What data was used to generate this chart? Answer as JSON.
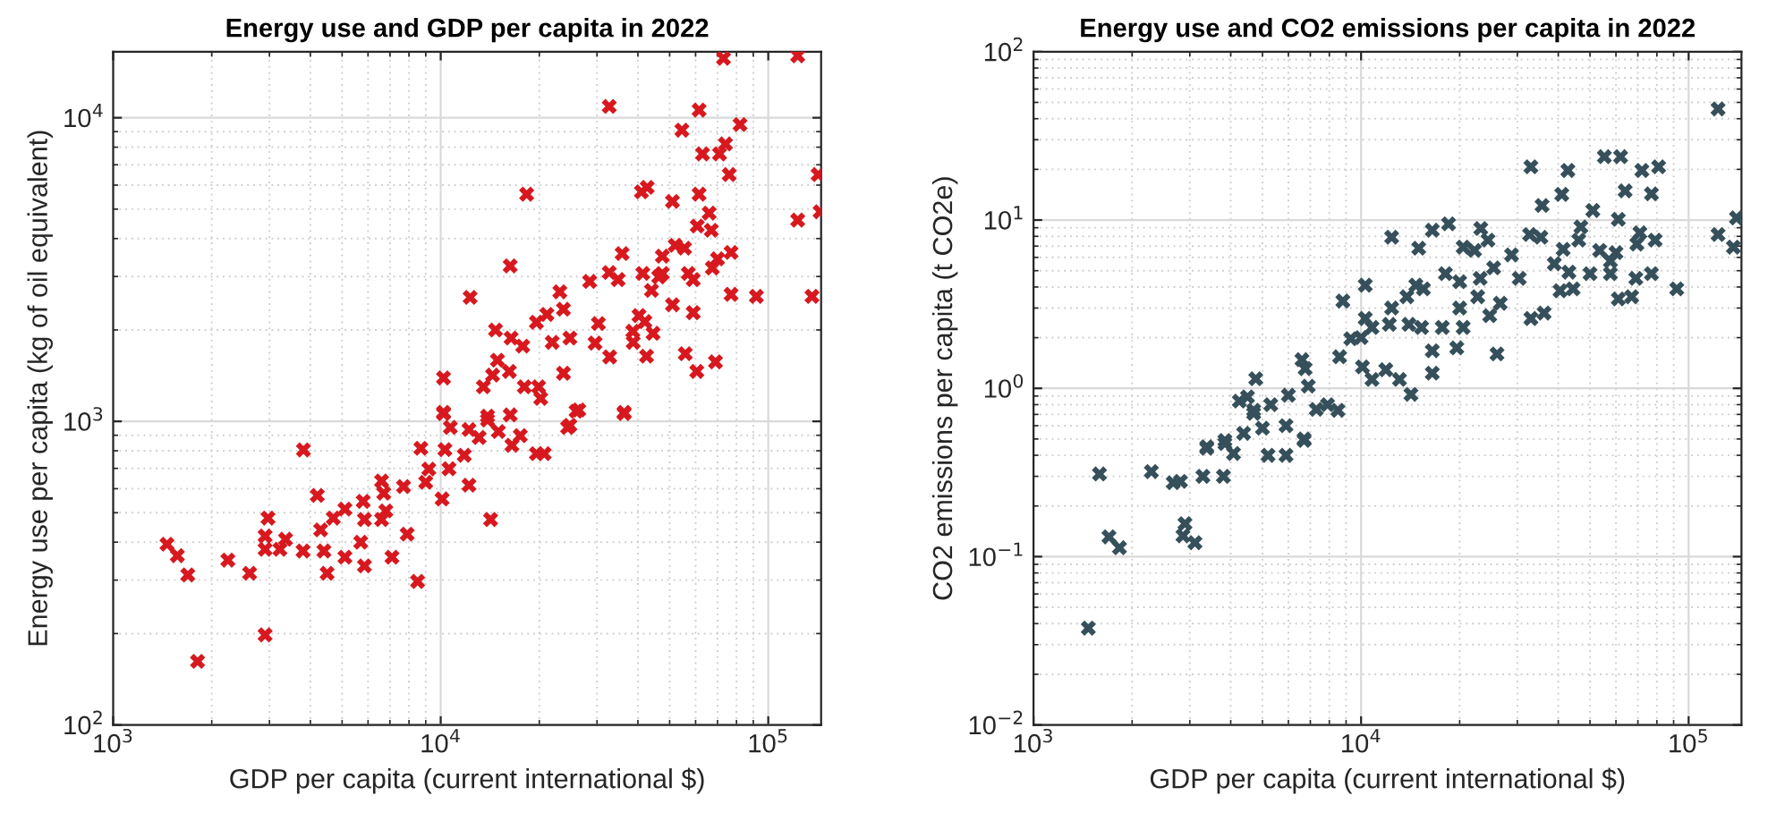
{
  "chart_data": [
    {
      "type": "scatter",
      "title": "Energy use and GDP per capita in 2022",
      "xlabel": "GDP per capita (current international $)",
      "ylabel": "Energy use per capita (kg of oil equivalent)",
      "log": "xy",
      "grid": true,
      "marker": "cross",
      "xlim": [
        1000,
        145000
      ],
      "ylim": [
        100,
        16500
      ],
      "xticks": [
        {
          "value": 1000,
          "label": "10$^{3}$"
        },
        {
          "value": 10000,
          "label": "10$^{4}$"
        },
        {
          "value": 100000,
          "label": "10$^{5}$"
        }
      ],
      "yticks": [
        {
          "value": 100,
          "label": "10$^{2}$"
        },
        {
          "value": 1000,
          "label": "10$^{3}$"
        },
        {
          "value": 10000,
          "label": "10$^{4}$"
        }
      ],
      "series": [
        {
          "color": "#d7191f",
          "x": [
            123000,
            73000,
            32700,
            61500,
            54500,
            82000,
            74000,
            63000,
            71000,
            76000,
            142000,
            144000,
            123000,
            18300,
            41000,
            42700,
            51000,
            61500,
            66000,
            60700,
            67000,
            52000,
            55500,
            47500,
            35800,
            77000,
            70000,
            67500,
            16300,
            32700,
            34800,
            41400,
            47500,
            57000,
            59000,
            28500,
            44000,
            46300,
            12300,
            23100,
            77000,
            92000,
            136000,
            51000,
            59000,
            23700,
            19600,
            21100,
            40300,
            30300,
            42000,
            14700,
            16400,
            24800,
            17800,
            21900,
            38600,
            44500,
            29600,
            38700,
            55800,
            69000,
            42500,
            32800,
            14900,
            60500,
            16200,
            14400,
            23700,
            10200,
            13500,
            18000,
            19900,
            20200,
            36300,
            26400,
            24800,
            10200,
            16300,
            13900,
            10700,
            12200,
            13900,
            13100,
            15000,
            16500,
            17500,
            19600,
            20700,
            24400,
            25900,
            36300,
            10200,
            10300,
            8700,
            11800,
            10600,
            9200,
            12200,
            7700,
            9000,
            10100,
            14200,
            6600,
            6700,
            6800,
            5800,
            5850,
            6600,
            7900,
            7100,
            8500,
            5700,
            5100,
            4700,
            4200,
            3810,
            4300,
            4400,
            3800,
            5100,
            5850,
            4500,
            3360,
            2970,
            2910,
            2910,
            3230,
            2240,
            2610,
            1460,
            1570,
            1690,
            2910,
            1810
          ],
          "values": [
            16000,
            15700,
            10900,
            10600,
            9100,
            9500,
            8200,
            7600,
            7600,
            6500,
            6500,
            4900,
            4600,
            5600,
            5700,
            5900,
            5300,
            5600,
            4850,
            4400,
            4260,
            3800,
            3720,
            3500,
            3570,
            3600,
            3430,
            3200,
            3250,
            3090,
            2930,
            3070,
            3070,
            3070,
            2930,
            2890,
            2700,
            2990,
            2560,
            2670,
            2620,
            2580,
            2580,
            2420,
            2280,
            2340,
            2120,
            2250,
            2230,
            2100,
            2130,
            2000,
            1880,
            1880,
            1770,
            1820,
            1980,
            1950,
            1810,
            1820,
            1670,
            1570,
            1640,
            1630,
            1590,
            1460,
            1460,
            1420,
            1440,
            1390,
            1300,
            1300,
            1300,
            1190,
            1070,
            1090,
            970,
            1070,
            1050,
            1040,
            955,
            940,
            1010,
            885,
            926,
            834,
            897,
            783,
            783,
            955,
            1080,
            1060,
            1060,
            807,
            815,
            773,
            698,
            696,
            616,
            610,
            630,
            555,
            475,
            636,
            580,
            507,
            545,
            475,
            475,
            425,
            357,
            297,
            400,
            514,
            480,
            570,
            805,
            439,
            374,
            374,
            357,
            334,
            316,
            409,
            480,
            419,
            379,
            379,
            349,
            316,
            394,
            361,
            312,
            198,
            162
          ]
        }
      ]
    },
    {
      "type": "scatter",
      "title": "Energy use and CO2 emissions per capita in 2022",
      "xlabel": "GDP per capita (current international $)",
      "ylabel": "CO2 emissions per capita (t CO2e)",
      "log": "xy",
      "grid": true,
      "marker": "cross",
      "xlim": [
        1000,
        145000
      ],
      "ylim": [
        0.01,
        100
      ],
      "xticks": [
        {
          "value": 1000,
          "label": "10$^{3}$"
        },
        {
          "value": 10000,
          "label": "10$^{4}$"
        },
        {
          "value": 100000,
          "label": "10$^{5}$"
        }
      ],
      "yticks": [
        {
          "value": 0.01,
          "label": "10$^{−2}$"
        },
        {
          "value": 0.1,
          "label": "10$^{−1}$"
        },
        {
          "value": 1,
          "label": "10$^{0}$"
        },
        {
          "value": 10,
          "label": "10$^{1}$"
        },
        {
          "value": 100,
          "label": "10$^{2}$"
        }
      ],
      "series": [
        {
          "color": "#36505b",
          "x": [
            123000,
            33000,
            42800,
            55300,
            62000,
            72000,
            81000,
            41000,
            35700,
            64000,
            77000,
            123000,
            137000,
            140000,
            51000,
            61000,
            46900,
            32700,
            35400,
            71000,
            79000,
            69500,
            46200,
            41400,
            53500,
            60000,
            57700,
            38900,
            43100,
            50000,
            57700,
            69000,
            77000,
            92000,
            40500,
            44400,
            61000,
            67000,
            36200,
            33000,
            28800,
            30400,
            23200,
            20500,
            22200,
            24400,
            18500,
            16500,
            15000,
            12400,
            18100,
            20000,
            23100,
            25400,
            22700,
            26600,
            24700,
            20000,
            17700,
            20500,
            16500,
            19600,
            26000,
            16500,
            14700,
            13800,
            15500,
            14000,
            15300,
            12200,
            12400,
            10300,
            8800,
            10300,
            10800,
            9300,
            10000,
            8600,
            10100,
            10800,
            11900,
            13100,
            14200,
            6600,
            6750,
            4770,
            6900,
            6000,
            5300,
            4500,
            7300,
            7900,
            8500,
            4250,
            4700,
            5000,
            5900,
            6700,
            4380,
            3840,
            3380,
            4700,
            3840,
            4080,
            3380,
            3800,
            3290,
            2810,
            2670,
            2290,
            1590,
            5200,
            5900,
            6700,
            2900,
            2860,
            3110,
            1700,
            1830,
            1470
          ],
          "values": [
            45.7,
            20.7,
            19.7,
            23.8,
            23.8,
            19.7,
            20.7,
            14.2,
            12.2,
            14.9,
            14.3,
            8.2,
            6.9,
            10.3,
            11.4,
            10.1,
            9.1,
            8.2,
            7.9,
            8.4,
            7.6,
            7.2,
            7.6,
            6.7,
            6.6,
            6.4,
            5.7,
            5.5,
            4.9,
            4.8,
            4.8,
            4.5,
            4.8,
            3.9,
            3.8,
            3.9,
            3.4,
            3.5,
            2.8,
            2.6,
            6.2,
            4.5,
            8.9,
            6.9,
            6.6,
            7.6,
            9.5,
            8.7,
            6.8,
            7.9,
            4.8,
            4.3,
            4.5,
            5.2,
            3.5,
            3.2,
            2.7,
            3.0,
            2.3,
            2.3,
            1.67,
            1.74,
            1.6,
            1.23,
            4.1,
            3.5,
            3.9,
            2.4,
            2.3,
            2.4,
            3.0,
            4.1,
            3.3,
            2.6,
            2.3,
            1.97,
            2.0,
            1.54,
            1.34,
            1.13,
            1.29,
            1.13,
            0.92,
            1.48,
            1.31,
            1.14,
            1.03,
            0.91,
            0.8,
            0.89,
            0.75,
            0.8,
            0.74,
            0.84,
            0.74,
            0.58,
            0.6,
            0.49,
            0.54,
            0.49,
            0.45,
            0.71,
            0.47,
            0.41,
            0.44,
            0.3,
            0.3,
            0.28,
            0.275,
            0.32,
            0.31,
            0.4,
            0.4,
            0.5,
            0.157,
            0.133,
            0.121,
            0.131,
            0.113,
            0.0376
          ]
        }
      ]
    }
  ]
}
